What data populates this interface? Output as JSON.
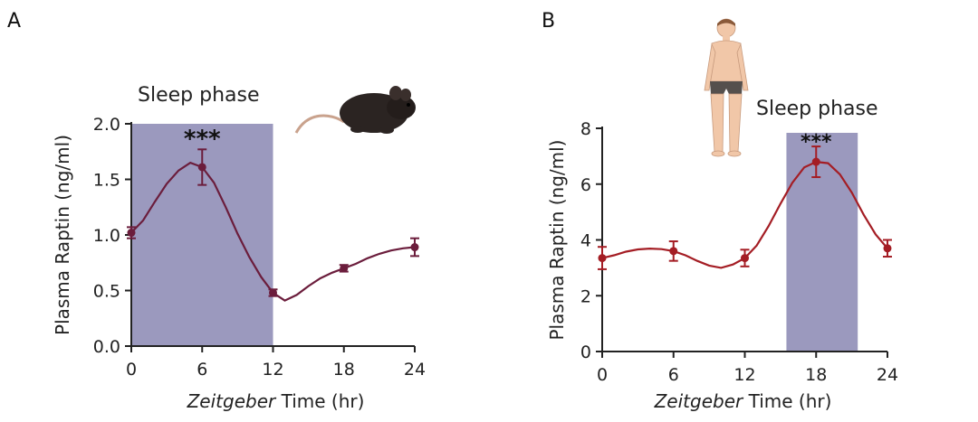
{
  "chart_data": [
    {
      "panel": "A",
      "type": "line",
      "xlabel_italic": "Zeitgeber",
      "xlabel_rest": " Time (hr)",
      "ylabel": "Plasma Raptin (ng/ml)",
      "xlim": [
        0,
        24
      ],
      "ylim": [
        0,
        2
      ],
      "xticks": [
        0,
        6,
        12,
        18,
        24
      ],
      "yticks": [
        "0.0",
        "0.5",
        "1.0",
        "1.5",
        "2.0"
      ],
      "ytick_values": [
        0,
        0.5,
        1.0,
        1.5,
        2.0
      ],
      "annotation": "Sleep phase",
      "significance": "***",
      "shaded_x": [
        0,
        12
      ],
      "grid": false,
      "line_color": "#6b1d3c",
      "shade_color": "#9b99be",
      "points": [
        {
          "x": 0,
          "y": 1.02,
          "err": 0.05
        },
        {
          "x": 6,
          "y": 1.61,
          "err": 0.16
        },
        {
          "x": 12,
          "y": 0.48,
          "err": 0.03
        },
        {
          "x": 18,
          "y": 0.7,
          "err": 0.03
        },
        {
          "x": 24,
          "y": 0.89,
          "err": 0.08
        }
      ],
      "curve": [
        [
          0,
          1.02
        ],
        [
          1,
          1.13
        ],
        [
          2,
          1.3
        ],
        [
          3,
          1.46
        ],
        [
          4,
          1.58
        ],
        [
          5,
          1.65
        ],
        [
          6,
          1.61
        ],
        [
          7,
          1.47
        ],
        [
          8,
          1.25
        ],
        [
          9,
          1.01
        ],
        [
          10,
          0.8
        ],
        [
          11,
          0.62
        ],
        [
          12,
          0.48
        ],
        [
          13,
          0.41
        ],
        [
          14,
          0.46
        ],
        [
          15,
          0.54
        ],
        [
          16,
          0.61
        ],
        [
          17,
          0.66
        ],
        [
          18,
          0.7
        ],
        [
          19,
          0.74
        ],
        [
          20,
          0.79
        ],
        [
          21,
          0.83
        ],
        [
          22,
          0.86
        ],
        [
          23,
          0.88
        ],
        [
          24,
          0.89
        ]
      ]
    },
    {
      "panel": "B",
      "type": "line",
      "xlabel_italic": "Zeitgeber",
      "xlabel_rest": " Time (hr)",
      "ylabel": "Plasma Raptin (ng/ml)",
      "xlim": [
        0,
        24
      ],
      "ylim": [
        0,
        8
      ],
      "xticks": [
        0,
        6,
        12,
        18,
        24
      ],
      "yticks": [
        "0",
        "2",
        "4",
        "6",
        "8"
      ],
      "ytick_values": [
        0,
        2,
        4,
        6,
        8
      ],
      "annotation": "Sleep phase",
      "significance": "***",
      "shaded_x": [
        15.5,
        21.5
      ],
      "grid": false,
      "line_color": "#a41d24",
      "shade_color": "#9b99be",
      "points": [
        {
          "x": 0,
          "y": 3.35,
          "err": 0.4
        },
        {
          "x": 6,
          "y": 3.6,
          "err": 0.35
        },
        {
          "x": 12,
          "y": 3.35,
          "err": 0.3
        },
        {
          "x": 18,
          "y": 6.8,
          "err": 0.55
        },
        {
          "x": 24,
          "y": 3.7,
          "err": 0.3
        }
      ],
      "curve": [
        [
          0,
          3.35
        ],
        [
          1,
          3.45
        ],
        [
          2,
          3.58
        ],
        [
          3,
          3.66
        ],
        [
          4,
          3.69
        ],
        [
          5,
          3.67
        ],
        [
          6,
          3.6
        ],
        [
          7,
          3.45
        ],
        [
          8,
          3.25
        ],
        [
          9,
          3.08
        ],
        [
          10,
          3.0
        ],
        [
          11,
          3.12
        ],
        [
          12,
          3.35
        ],
        [
          13,
          3.8
        ],
        [
          14,
          4.5
        ],
        [
          15,
          5.3
        ],
        [
          16,
          6.05
        ],
        [
          17,
          6.6
        ],
        [
          18,
          6.8
        ],
        [
          19,
          6.75
        ],
        [
          20,
          6.35
        ],
        [
          21,
          5.7
        ],
        [
          22,
          4.9
        ],
        [
          23,
          4.2
        ],
        [
          24,
          3.7
        ]
      ]
    }
  ],
  "icons": {
    "panel_a_image": "mouse-icon",
    "panel_b_image": "human-figure-icon"
  }
}
